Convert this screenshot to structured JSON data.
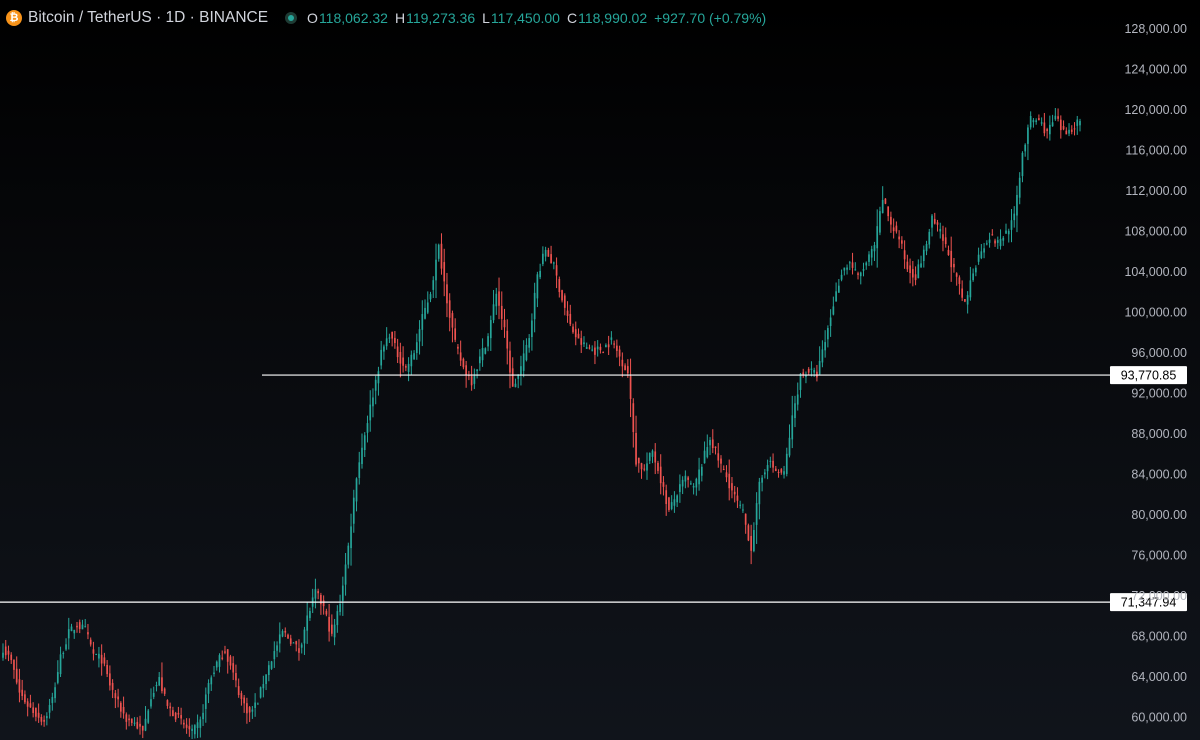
{
  "header": {
    "symbol_title": "Bitcoin / TetherUS · 1D · BINANCE",
    "logo_icon": "bitcoin-logo-icon",
    "status_icon": "market-open-dot-icon",
    "ohlc": [
      {
        "key": "O",
        "value": "118,062.32"
      },
      {
        "key": "H",
        "value": "119,273.36"
      },
      {
        "key": "L",
        "value": "117,450.00"
      },
      {
        "key": "C",
        "value": "118,990.02"
      }
    ],
    "change": "+927.70 (+0.79%)"
  },
  "colors": {
    "up": "#26a69a",
    "down": "#ef5350",
    "background": "#000000",
    "axis_text": "#b2b5be",
    "horizontal_line": "#ffffff"
  },
  "chart_data": {
    "type": "candlestick",
    "symbol": "BTCUSDT",
    "interval": "1D",
    "exchange": "BINANCE",
    "ylim": [
      58500,
      129500
    ],
    "y_ticks": [
      {
        "value": 60000,
        "label": "60,000.00"
      },
      {
        "value": 64000,
        "label": "64,000.00"
      },
      {
        "value": 68000,
        "label": "68,000.00"
      },
      {
        "value": 72000,
        "label": "72,000.00"
      },
      {
        "value": 76000,
        "label": "76,000.00"
      },
      {
        "value": 80000,
        "label": "80,000.00"
      },
      {
        "value": 84000,
        "label": "84,000.00"
      },
      {
        "value": 88000,
        "label": "88,000.00"
      },
      {
        "value": 92000,
        "label": "92,000.00"
      },
      {
        "value": 96000,
        "label": "96,000.00"
      },
      {
        "value": 100000,
        "label": "100,000.00"
      },
      {
        "value": 104000,
        "label": "104,000.00"
      },
      {
        "value": 108000,
        "label": "108,000.00"
      },
      {
        "value": 112000,
        "label": "112,000.00"
      },
      {
        "value": 116000,
        "label": "116,000.00"
      },
      {
        "value": 120000,
        "label": "120,000.00"
      },
      {
        "value": 124000,
        "label": "124,000.00"
      },
      {
        "value": 128000,
        "label": "128,000.00"
      }
    ],
    "horizontal_lines": [
      {
        "value": 93770.85,
        "label": "93,770.85"
      },
      {
        "value": 71347.94,
        "label": "71,347.94"
      }
    ],
    "close_path": [
      66800,
      65500,
      62400,
      61200,
      60300,
      59600,
      61800,
      65900,
      68300,
      69100,
      68600,
      66200,
      65700,
      63200,
      61300,
      59800,
      59400,
      58500,
      62200,
      63700,
      61000,
      60200,
      59200,
      58400,
      59500,
      63300,
      65300,
      66600,
      64200,
      61700,
      60300,
      61600,
      64400,
      66400,
      68400,
      67600,
      66500,
      69800,
      72300,
      70800,
      67900,
      71400,
      76800,
      83900,
      88000,
      91900,
      95900,
      97900,
      95800,
      94400,
      96000,
      99400,
      102000,
      106400,
      101300,
      96800,
      94500,
      93200,
      95400,
      97600,
      102000,
      98100,
      92400,
      94500,
      97600,
      103600,
      106200,
      104500,
      101300,
      98600,
      97100,
      96500,
      96200,
      96400,
      97200,
      95600,
      94000,
      85300,
      84400,
      86300,
      83500,
      80300,
      82100,
      83600,
      82500,
      85000,
      87600,
      85400,
      83700,
      81700,
      80100,
      76700,
      82800,
      85300,
      84300,
      84000,
      89500,
      93700,
      94200,
      93800,
      97100,
      100800,
      104000,
      104900,
      103400,
      104800,
      106500,
      111200,
      108700,
      107300,
      104300,
      103600,
      105800,
      109100,
      107800,
      105700,
      103200,
      100600,
      104100,
      106200,
      107500,
      106800,
      107900,
      109300,
      115700,
      119000,
      118900,
      117700,
      119200,
      117600,
      118200,
      118990
    ]
  }
}
